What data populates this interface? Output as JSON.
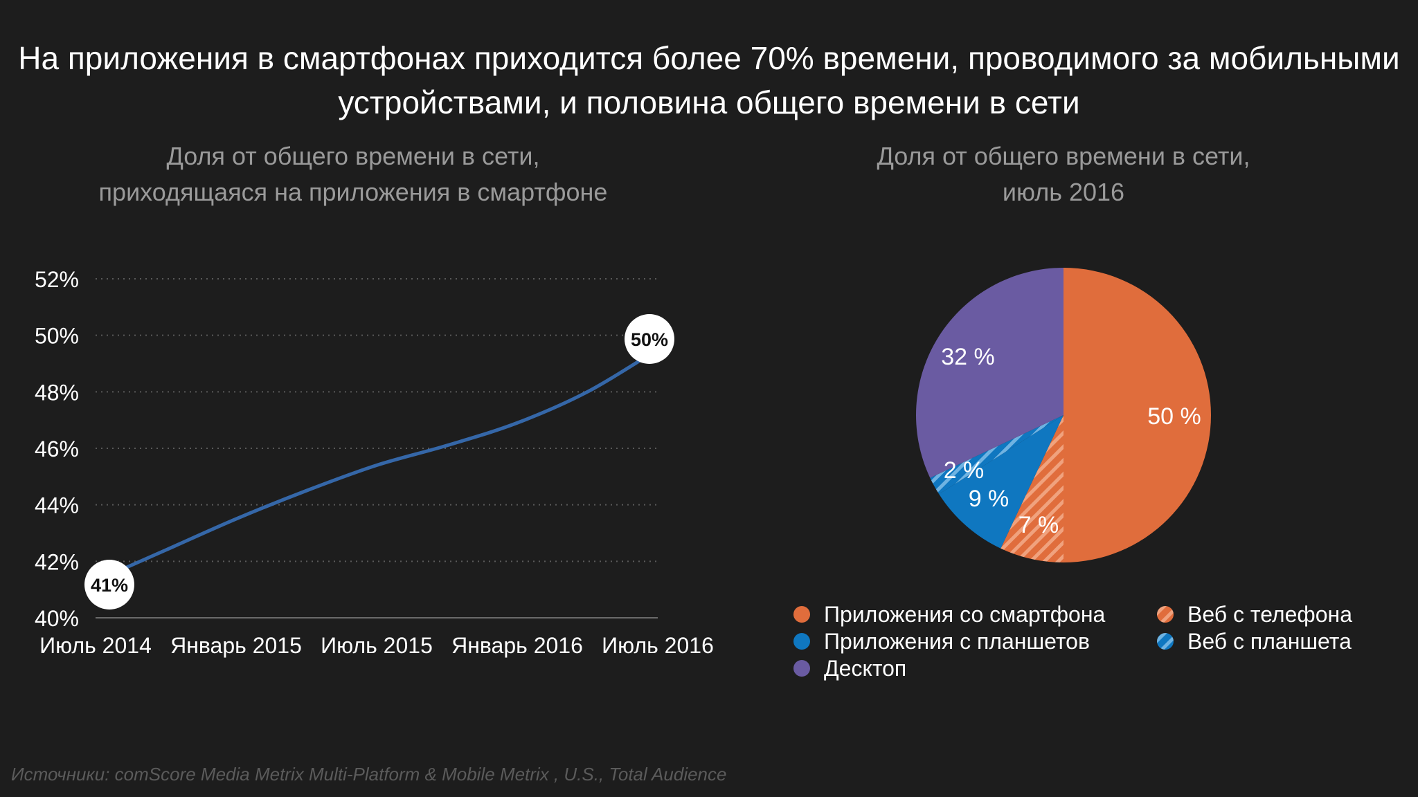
{
  "title_line1": "На приложения в смартфонах приходится более 70% времени, проводимого за мобильными",
  "title_line2": "устройствами, и половина общего времени в сети",
  "source": "Источники: comScore Media Metrix Multi-Platform & Mobile Metrix , U.S., Total Audience",
  "chart_data": [
    {
      "type": "line",
      "title_line1": "Доля от общего времени в сети,",
      "title_line2": "приходящаяся на приложения в смартфоне",
      "x": [
        "Июль 2014",
        "Январь 2015",
        "Июль 2015",
        "Январь 2016",
        "Июль 2016"
      ],
      "y_points": [
        [
          0,
          41.3
        ],
        [
          0.5,
          42.4
        ],
        [
          1,
          43.5
        ],
        [
          1.5,
          44.5
        ],
        [
          2,
          45.4
        ],
        [
          2.5,
          46.1
        ],
        [
          3,
          46.9
        ],
        [
          3.5,
          48.0
        ],
        [
          4,
          49.5
        ]
      ],
      "start_label": "41%",
      "end_label": "50%",
      "ylim": [
        40,
        52
      ],
      "yticks": [
        40,
        42,
        44,
        46,
        48,
        50,
        52
      ],
      "ytick_labels": [
        "40%",
        "42%",
        "44%",
        "46%",
        "48%",
        "50%",
        "52%"
      ],
      "grid": true,
      "line_color": "#3567a8"
    },
    {
      "type": "pie",
      "title_line1": "Доля от общего времени в сети,",
      "title_line2": "июль 2016",
      "slices": [
        {
          "name": "Приложения со смартфона",
          "value": 50,
          "label": "50 %",
          "color": "#e06d3c",
          "pattern": "solid"
        },
        {
          "name": "Веб с телефона",
          "value": 7,
          "label": "7 %",
          "color": "#e06d3c",
          "pattern": "hatched"
        },
        {
          "name": "Приложения с планшетов",
          "value": 9,
          "label": "9 %",
          "color": "#0f77c0",
          "pattern": "solid"
        },
        {
          "name": "Веб с планшета",
          "value": 2,
          "label": "2 %",
          "color": "#0f77c0",
          "pattern": "hatched"
        },
        {
          "name": "Десктоп",
          "value": 32,
          "label": "32 %",
          "color": "#6a5ba2",
          "pattern": "solid"
        }
      ],
      "legend": [
        {
          "name": "Приложения со смартфона",
          "color": "#e06d3c",
          "pattern": "solid"
        },
        {
          "name": "Приложения с планшетов",
          "color": "#0f77c0",
          "pattern": "solid"
        },
        {
          "name": "Десктоп",
          "color": "#6a5ba2",
          "pattern": "solid"
        },
        {
          "name": "Веб с телефона",
          "color": "#e06d3c",
          "pattern": "hatched"
        },
        {
          "name": "Веб с планшета",
          "color": "#0f77c0",
          "pattern": "hatched"
        }
      ]
    }
  ]
}
